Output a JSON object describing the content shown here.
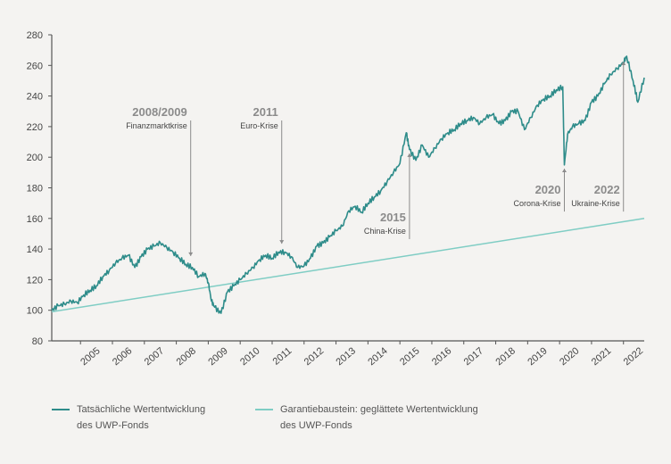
{
  "chart_data": {
    "type": "line",
    "title": "",
    "xlabel": "",
    "ylabel": "",
    "ylim": [
      80,
      280
    ],
    "yticks": [
      80,
      100,
      120,
      140,
      160,
      180,
      200,
      220,
      240,
      260,
      280
    ],
    "xlim": [
      2004.1,
      2022.65
    ],
    "xticks": [
      "2005",
      "2006",
      "2007",
      "2008",
      "2009",
      "2010",
      "2011",
      "2012",
      "2013",
      "2014",
      "2015",
      "2016",
      "2017",
      "2018",
      "2019",
      "2020",
      "2021",
      "2022"
    ],
    "colors": {
      "actual": "#2e8c8a",
      "guarantee": "#7fcdc4",
      "axis": "#555555",
      "annotation": "#8b8b8b"
    },
    "series": [
      {
        "name": "Tatsächliche Wertentwicklung des UWP-Fonds",
        "x": [
          2004.1,
          2004.3,
          2004.5,
          2004.7,
          2004.9,
          2005.1,
          2005.3,
          2005.5,
          2005.7,
          2005.9,
          2006.1,
          2006.3,
          2006.5,
          2006.7,
          2006.9,
          2007.1,
          2007.3,
          2007.5,
          2007.7,
          2007.9,
          2008.1,
          2008.3,
          2008.5,
          2008.7,
          2008.9,
          2009.0,
          2009.1,
          2009.2,
          2009.4,
          2009.6,
          2009.8,
          2010.0,
          2010.2,
          2010.4,
          2010.6,
          2010.8,
          2011.0,
          2011.2,
          2011.4,
          2011.6,
          2011.8,
          2012.0,
          2012.2,
          2012.4,
          2012.6,
          2012.8,
          2013.0,
          2013.2,
          2013.4,
          2013.6,
          2013.8,
          2014.0,
          2014.2,
          2014.4,
          2014.6,
          2014.8,
          2015.0,
          2015.2,
          2015.3,
          2015.5,
          2015.7,
          2015.9,
          2016.1,
          2016.3,
          2016.5,
          2016.7,
          2016.9,
          2017.1,
          2017.3,
          2017.5,
          2017.7,
          2017.9,
          2018.1,
          2018.3,
          2018.5,
          2018.7,
          2018.9,
          2019.1,
          2019.3,
          2019.5,
          2019.7,
          2019.9,
          2020.1,
          2020.15,
          2020.25,
          2020.4,
          2020.6,
          2020.8,
          2021.0,
          2021.2,
          2021.4,
          2021.6,
          2021.8,
          2022.0,
          2022.1,
          2022.3,
          2022.45,
          2022.65
        ],
        "values": [
          100,
          103,
          104,
          106,
          105,
          110,
          113,
          116,
          122,
          126,
          131,
          134,
          136,
          128,
          135,
          140,
          142,
          144,
          141,
          138,
          134,
          130,
          128,
          122,
          124,
          118,
          106,
          102,
          98,
          112,
          116,
          120,
          124,
          128,
          133,
          136,
          134,
          138,
          138,
          135,
          128,
          129,
          134,
          142,
          144,
          148,
          152,
          155,
          165,
          168,
          164,
          170,
          174,
          178,
          184,
          190,
          196,
          216,
          205,
          198,
          208,
          200,
          206,
          212,
          216,
          218,
          222,
          224,
          226,
          222,
          226,
          228,
          222,
          224,
          230,
          230,
          218,
          226,
          234,
          238,
          240,
          244,
          246,
          195,
          215,
          220,
          222,
          224,
          236,
          240,
          248,
          254,
          258,
          262,
          266,
          250,
          236,
          252
        ]
      },
      {
        "name": "Garantiebaustein: geglättete Wertentwicklung des UWP-Fonds",
        "x": [
          2004.1,
          2022.65
        ],
        "values": [
          99,
          160
        ]
      }
    ],
    "annotations": [
      {
        "year_label": "2008/2009",
        "label": "Finanzmarktkrise",
        "x": 2008.45,
        "y": 132,
        "label_y": 210
      },
      {
        "year_label": "2011",
        "label": "Euro-Krise",
        "x": 2011.3,
        "y": 140,
        "label_y": 210
      },
      {
        "year_label": "2015",
        "label": "China-Krise",
        "x": 2015.3,
        "y": 206,
        "label_y": 150
      },
      {
        "year_label": "2020",
        "label": "Corona-Krise",
        "x": 2020.15,
        "y": 196,
        "label_y": 168
      },
      {
        "year_label": "2022",
        "label": "Ukraine-Krise",
        "x": 2022.0,
        "y": 266,
        "label_y": 168
      }
    ],
    "legend": [
      {
        "label_line1": "Tatsächliche Wertentwicklung",
        "label_line2": "des UWP-Fonds",
        "color": "#2e8c8a"
      },
      {
        "label_line1": "Garantiebaustein: geglättete Wertentwicklung",
        "label_line2": "des UWP-Fonds",
        "color": "#7fcdc4"
      }
    ],
    "legend_position": "bottom"
  }
}
